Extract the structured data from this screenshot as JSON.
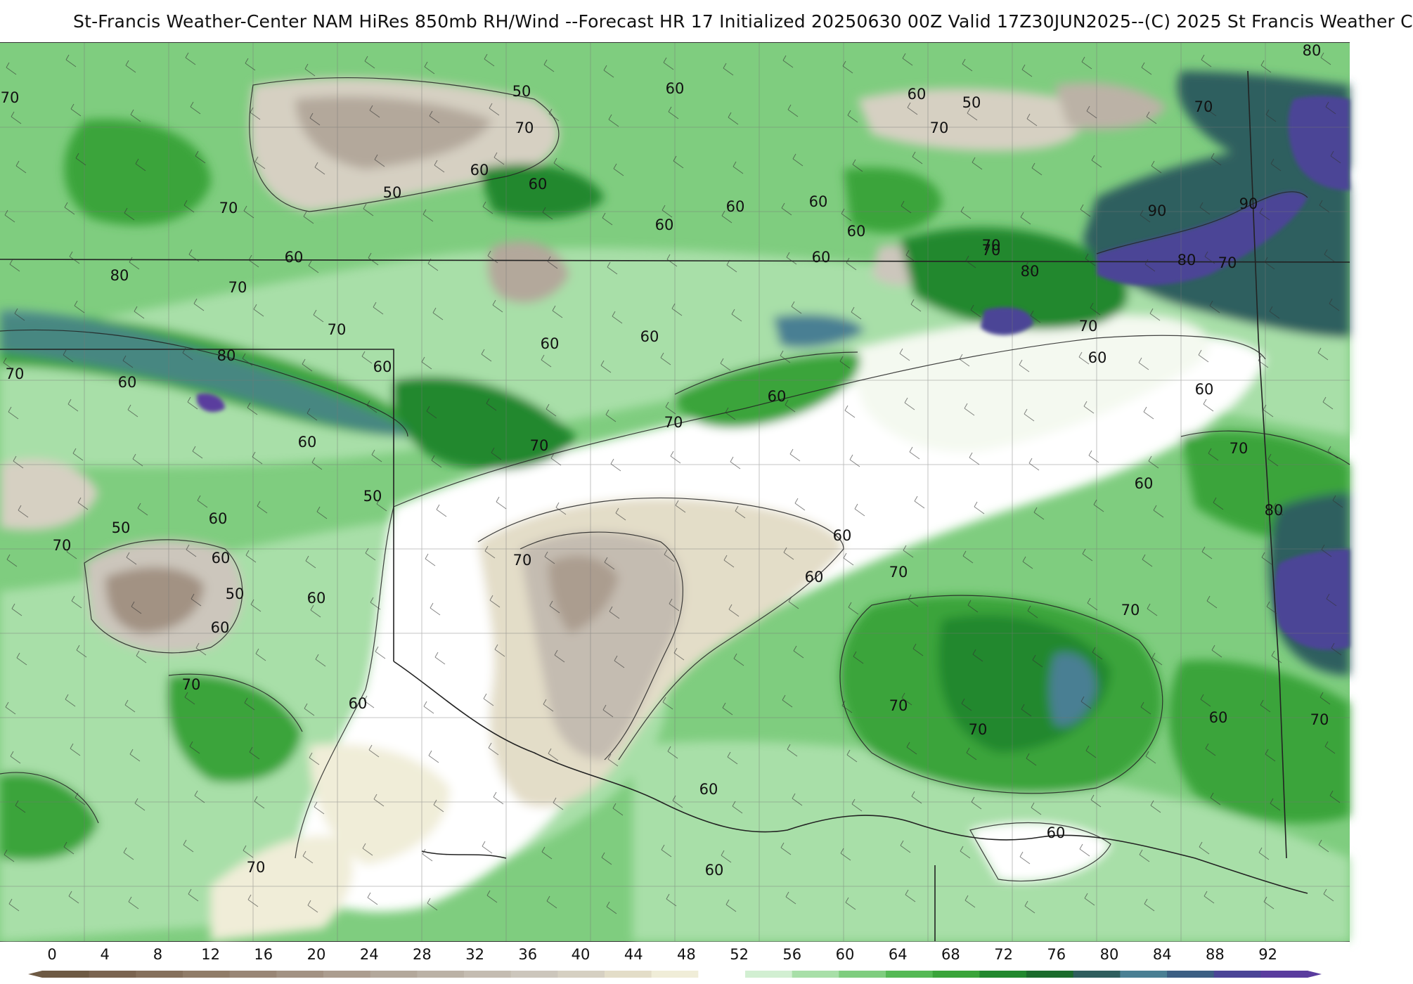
{
  "header": {
    "title": "St-Francis Weather-Center NAM HiRes 850mb RH/Wind  --Forecast HR 17 Initialized 20250630 00Z Valid 17Z30JUN2025--(C) 2025 St Francis Weather C"
  },
  "colorbar": {
    "ticks": [
      "0",
      "4",
      "8",
      "12",
      "16",
      "20",
      "24",
      "28",
      "32",
      "36",
      "40",
      "44",
      "48",
      "52",
      "56",
      "60",
      "64",
      "68",
      "72",
      "76",
      "80",
      "84",
      "88",
      "92"
    ],
    "colors": [
      "#6e5a44",
      "#7a6450",
      "#85705c",
      "#907c68",
      "#998676",
      "#a29283",
      "#ab9d8f",
      "#b3a89b",
      "#bbb2a6",
      "#c4bcb1",
      "#ccc6bc",
      "#d6d0c2",
      "#e3ddc8",
      "#f0edd8",
      "#ffffff",
      "#d2efd2",
      "#a8dfa8",
      "#7fcd7f",
      "#55b955",
      "#3aa43a",
      "#22882e",
      "#1b6b2c",
      "#2f5e5e",
      "#4a7f93",
      "#3c5f83",
      "#4b4596",
      "#5a3c9e"
    ]
  },
  "map": {
    "contour_labels": [
      {
        "text": "70",
        "id": "c1"
      },
      {
        "text": "50",
        "id": "c2"
      },
      {
        "text": "60",
        "id": "c3"
      },
      {
        "text": "60",
        "id": "c4"
      },
      {
        "text": "50",
        "id": "c5"
      },
      {
        "text": "80",
        "id": "c6"
      },
      {
        "text": "70",
        "id": "c7"
      },
      {
        "text": "70",
        "id": "c8"
      },
      {
        "text": "70",
        "id": "c9"
      },
      {
        "text": "60",
        "id": "c10"
      },
      {
        "text": "50",
        "id": "c11"
      },
      {
        "text": "60",
        "id": "c12"
      },
      {
        "text": "70",
        "id": "c13"
      },
      {
        "text": "60",
        "id": "c14"
      },
      {
        "text": "60",
        "id": "c15"
      },
      {
        "text": "60",
        "id": "c16"
      },
      {
        "text": "60",
        "id": "c17"
      },
      {
        "text": "70",
        "id": "c18"
      },
      {
        "text": "60",
        "id": "c19"
      },
      {
        "text": "90",
        "id": "c20"
      },
      {
        "text": "90",
        "id": "c21"
      },
      {
        "text": "70",
        "id": "c22"
      },
      {
        "text": "80",
        "id": "c23"
      },
      {
        "text": "80",
        "id": "c24"
      },
      {
        "text": "70",
        "id": "c25"
      },
      {
        "text": "60",
        "id": "c26"
      },
      {
        "text": "70",
        "id": "c27"
      },
      {
        "text": "80",
        "id": "c28"
      },
      {
        "text": "80",
        "id": "c29"
      },
      {
        "text": "70",
        "id": "c30"
      },
      {
        "text": "60",
        "id": "c31"
      },
      {
        "text": "70",
        "id": "c32"
      },
      {
        "text": "70",
        "id": "c33"
      },
      {
        "text": "60",
        "id": "c34"
      },
      {
        "text": "60",
        "id": "c35"
      },
      {
        "text": "60",
        "id": "c36"
      },
      {
        "text": "60",
        "id": "c37"
      },
      {
        "text": "70",
        "id": "c38"
      },
      {
        "text": "70",
        "id": "c39"
      },
      {
        "text": "60",
        "id": "c40"
      },
      {
        "text": "60",
        "id": "c41"
      },
      {
        "text": "60",
        "id": "c42"
      },
      {
        "text": "70",
        "id": "c43"
      },
      {
        "text": "60",
        "id": "c44"
      },
      {
        "text": "60",
        "id": "c45"
      },
      {
        "text": "50",
        "id": "c46"
      },
      {
        "text": "60",
        "id": "c47"
      },
      {
        "text": "70",
        "id": "c48"
      },
      {
        "text": "50",
        "id": "c49"
      },
      {
        "text": "60",
        "id": "c50"
      },
      {
        "text": "70",
        "id": "c51"
      },
      {
        "text": "60",
        "id": "c52"
      },
      {
        "text": "70",
        "id": "c53"
      },
      {
        "text": "60",
        "id": "c54"
      },
      {
        "text": "50",
        "id": "c55"
      },
      {
        "text": "60",
        "id": "c56"
      },
      {
        "text": "70",
        "id": "c57"
      },
      {
        "text": "70",
        "id": "c58"
      },
      {
        "text": "70",
        "id": "c59"
      },
      {
        "text": "70",
        "id": "c60"
      },
      {
        "text": "60",
        "id": "c61"
      },
      {
        "text": "70",
        "id": "c62"
      },
      {
        "text": "60",
        "id": "c63"
      },
      {
        "text": "60",
        "id": "c64"
      },
      {
        "text": "60",
        "id": "c65"
      },
      {
        "text": "70",
        "id": "c66"
      },
      {
        "text": "60",
        "id": "c67"
      },
      {
        "text": "80",
        "id": "c68"
      }
    ]
  }
}
